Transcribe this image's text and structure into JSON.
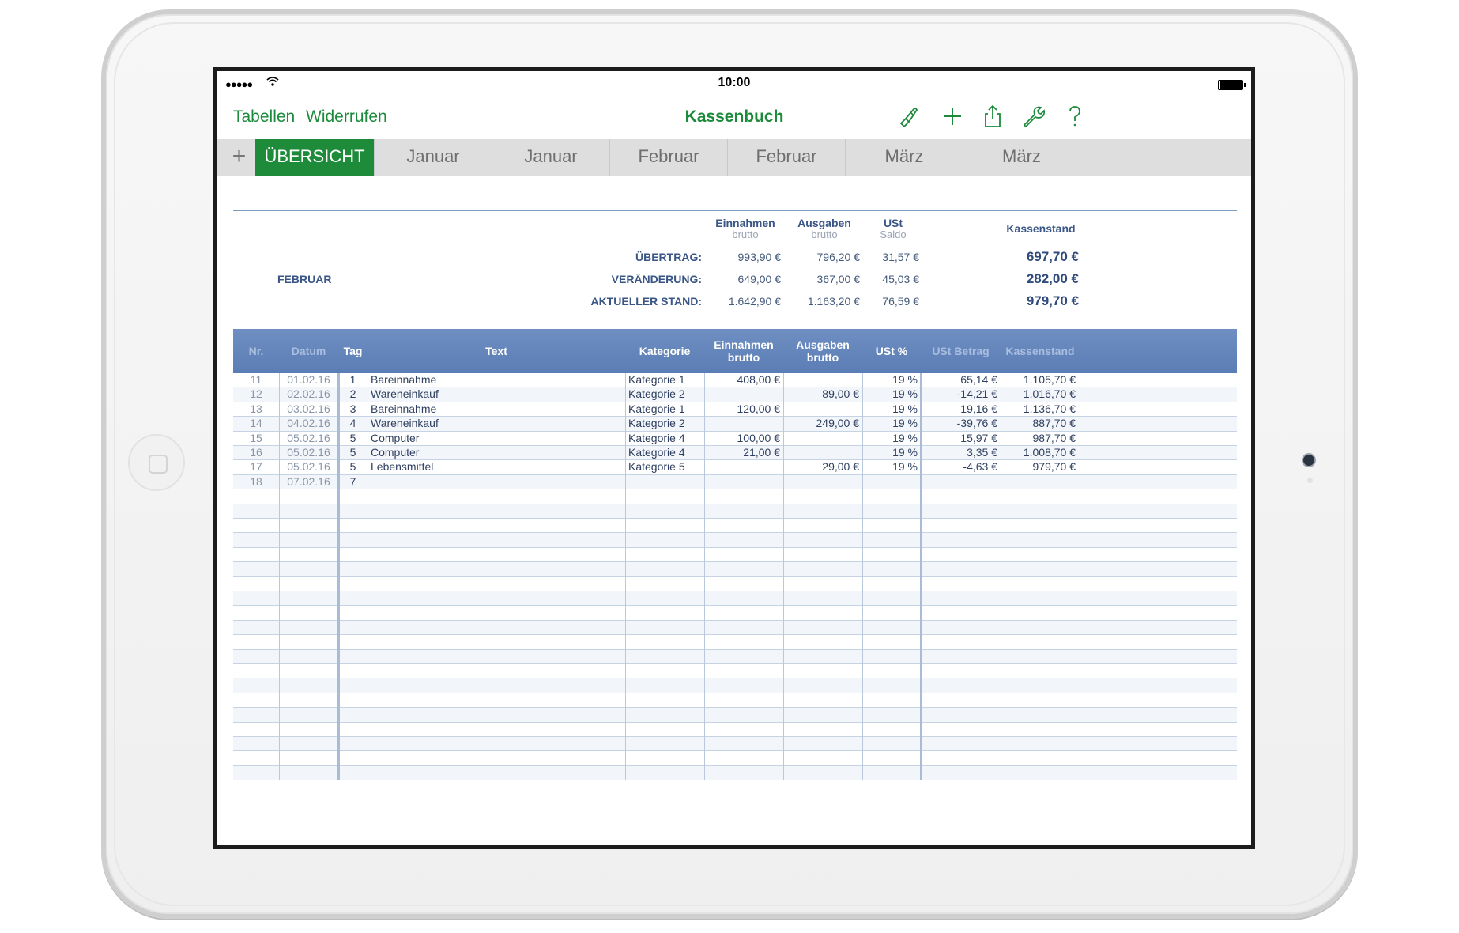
{
  "status": {
    "signal": "●●●●●",
    "wifi": "≋",
    "time": "10:00"
  },
  "toolbar": {
    "left_link1": "Tabellen",
    "left_link2": "Widerrufen",
    "title": "Kassenbuch",
    "icons": [
      "brush-icon",
      "plus-icon",
      "share-icon",
      "wrench-icon",
      "help-icon"
    ]
  },
  "tabs": {
    "add": "+",
    "items": [
      "ÜBERSICHT",
      "Januar",
      "Januar",
      "Februar",
      "Februar",
      "März",
      "März"
    ]
  },
  "summary": {
    "month": "FEBRUAR",
    "headers": {
      "einnahmen": "Einnahmen",
      "einnahmen_sub": "brutto",
      "ausgaben": "Ausgaben",
      "ausgaben_sub": "brutto",
      "ust": "USt",
      "ust_sub": "Saldo",
      "kassenstand": "Kassenstand"
    },
    "rows": [
      {
        "label": "ÜBERTRAG:",
        "einnahmen": "993,90 €",
        "ausgaben": "796,20 €",
        "ust": "31,57 €",
        "kassenstand": "697,70 €"
      },
      {
        "label": "VERÄNDERUNG:",
        "einnahmen": "649,00 €",
        "ausgaben": "367,00 €",
        "ust": "45,03 €",
        "kassenstand": "282,00 €"
      },
      {
        "label": "AKTUELLER STAND:",
        "einnahmen": "1.642,90 €",
        "ausgaben": "1.163,20 €",
        "ust": "76,59 €",
        "kassenstand": "979,70 €"
      }
    ]
  },
  "columns": {
    "nr": "Nr.",
    "datum": "Datum",
    "tag": "Tag",
    "text": "Text",
    "kategorie": "Kategorie",
    "einnahmen1": "Einnahmen",
    "einnahmen2": "brutto",
    "ausgaben1": "Ausgaben",
    "ausgaben2": "brutto",
    "ust_pct": "USt %",
    "ust_betrag": "USt Betrag",
    "kassenstand": "Kassenstand"
  },
  "rows": [
    {
      "nr": "11",
      "datum": "01.02.16",
      "tag": "1",
      "text": "Bareinnahme",
      "kategorie": "Kategorie 1",
      "einnahmen": "408,00 €",
      "ausgaben": "",
      "ust_pct": "19 %",
      "ust_betrag": "65,14 €",
      "kassenstand": "1.105,70 €"
    },
    {
      "nr": "12",
      "datum": "02.02.16",
      "tag": "2",
      "text": "Wareneinkauf",
      "kategorie": "Kategorie 2",
      "einnahmen": "",
      "ausgaben": "89,00 €",
      "ust_pct": "19 %",
      "ust_betrag": "-14,21 €",
      "kassenstand": "1.016,70 €"
    },
    {
      "nr": "13",
      "datum": "03.02.16",
      "tag": "3",
      "text": "Bareinnahme",
      "kategorie": "Kategorie 1",
      "einnahmen": "120,00 €",
      "ausgaben": "",
      "ust_pct": "19 %",
      "ust_betrag": "19,16 €",
      "kassenstand": "1.136,70 €"
    },
    {
      "nr": "14",
      "datum": "04.02.16",
      "tag": "4",
      "text": "Wareneinkauf",
      "kategorie": "Kategorie 2",
      "einnahmen": "",
      "ausgaben": "249,00 €",
      "ust_pct": "19 %",
      "ust_betrag": "-39,76 €",
      "kassenstand": "887,70 €"
    },
    {
      "nr": "15",
      "datum": "05.02.16",
      "tag": "5",
      "text": "Computer",
      "kategorie": "Kategorie 4",
      "einnahmen": "100,00 €",
      "ausgaben": "",
      "ust_pct": "19 %",
      "ust_betrag": "15,97 €",
      "kassenstand": "987,70 €"
    },
    {
      "nr": "16",
      "datum": "05.02.16",
      "tag": "5",
      "text": "Computer",
      "kategorie": "Kategorie 4",
      "einnahmen": "21,00 €",
      "ausgaben": "",
      "ust_pct": "19 %",
      "ust_betrag": "3,35 €",
      "kassenstand": "1.008,70 €"
    },
    {
      "nr": "17",
      "datum": "05.02.16",
      "tag": "5",
      "text": "Lebensmittel",
      "kategorie": "Kategorie 5",
      "einnahmen": "",
      "ausgaben": "29,00 €",
      "ust_pct": "19 %",
      "ust_betrag": "-4,63 €",
      "kassenstand": "979,70 €"
    },
    {
      "nr": "18",
      "datum": "07.02.16",
      "tag": "7",
      "text": "",
      "kategorie": "",
      "einnahmen": "",
      "ausgaben": "",
      "ust_pct": "",
      "ust_betrag": "",
      "kassenstand": ""
    }
  ],
  "colors": {
    "accent": "#1d8b3a",
    "header_blue": "#5b7db5",
    "text_blue": "#3a5686"
  }
}
